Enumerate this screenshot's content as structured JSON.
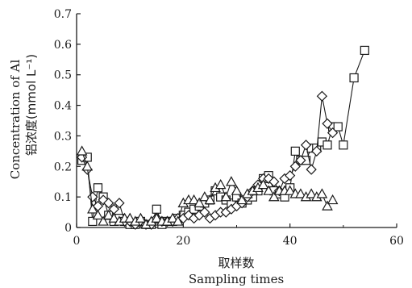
{
  "chart_data": {
    "type": "line",
    "title": "",
    "xlabel_cn": "取样数",
    "xlabel": "Sampling times",
    "ylabel_en": "Concentration of Al",
    "ylabel_cn": "铝浓度(mmol L⁻¹)",
    "xlim": [
      0,
      60
    ],
    "ylim": [
      0,
      0.7
    ],
    "xticks": [
      "0",
      "20",
      "40",
      "60"
    ],
    "yticks": [
      "0",
      "0.1",
      "0.2",
      "0.3",
      "0.4",
      "0.5",
      "0.6",
      "0.7"
    ],
    "grid": false,
    "legend": "none",
    "colors": {
      "ink": "#1a1a1a",
      "background": "#ffffff"
    },
    "series": [
      {
        "marker": "square",
        "x": [
          1,
          2,
          3,
          4,
          5,
          6,
          7,
          8,
          9,
          10,
          11,
          12,
          13,
          14,
          15,
          16,
          17,
          18,
          19,
          20,
          21,
          22,
          23,
          24,
          25,
          26,
          27,
          28,
          29,
          30,
          31,
          32,
          33,
          34,
          35,
          36,
          37,
          38,
          39,
          40,
          41,
          42,
          43,
          44,
          45,
          46,
          47,
          48,
          49,
          50,
          52,
          54
        ],
        "y": [
          0.22,
          0.23,
          0.02,
          0.13,
          0.1,
          0.04,
          0.02,
          0.03,
          0.02,
          0.01,
          0.01,
          0.02,
          0.01,
          0.01,
          0.06,
          0.01,
          0.02,
          0.02,
          0.03,
          0.04,
          0.05,
          0.06,
          0.07,
          0.08,
          0.09,
          0.12,
          0.1,
          0.09,
          0.08,
          0.1,
          0.08,
          0.09,
          0.1,
          0.12,
          0.16,
          0.17,
          0.12,
          0.11,
          0.1,
          0.13,
          0.25,
          0.22,
          0.22,
          0.26,
          0.26,
          0.28,
          0.27,
          0.33,
          0.33,
          0.27,
          0.49,
          0.58
        ]
      },
      {
        "marker": "diamond",
        "x": [
          1,
          2,
          3,
          4,
          5,
          6,
          7,
          8,
          9,
          10,
          11,
          12,
          13,
          14,
          15,
          16,
          17,
          18,
          19,
          20,
          21,
          22,
          23,
          24,
          25,
          26,
          27,
          28,
          29,
          30,
          31,
          32,
          33,
          34,
          35,
          36,
          37,
          38,
          39,
          40,
          41,
          42,
          43,
          44,
          45,
          46,
          47,
          48
        ],
        "y": [
          0.23,
          0.19,
          0.1,
          0.07,
          0.09,
          0.08,
          0.06,
          0.08,
          0.02,
          0.02,
          0.01,
          0.02,
          0.01,
          0.01,
          0.03,
          0.02,
          0.02,
          0.02,
          0.03,
          0.03,
          0.04,
          0.03,
          0.04,
          0.05,
          0.03,
          0.04,
          0.05,
          0.05,
          0.06,
          0.07,
          0.08,
          0.1,
          0.12,
          0.14,
          0.16,
          0.16,
          0.15,
          0.12,
          0.16,
          0.17,
          0.2,
          0.22,
          0.27,
          0.19,
          0.25,
          0.43,
          0.34,
          0.31
        ]
      },
      {
        "marker": "triangle",
        "x": [
          1,
          2,
          3,
          4,
          5,
          6,
          7,
          8,
          9,
          10,
          11,
          12,
          13,
          14,
          15,
          16,
          17,
          18,
          19,
          20,
          21,
          22,
          23,
          24,
          25,
          26,
          27,
          28,
          29,
          30,
          31,
          32,
          33,
          34,
          35,
          36,
          37,
          38,
          39,
          40,
          41,
          42,
          43,
          44,
          45,
          46,
          47,
          48
        ],
        "y": [
          0.25,
          0.2,
          0.06,
          0.04,
          0.02,
          0.04,
          0.03,
          0.02,
          0.03,
          0.03,
          0.02,
          0.03,
          0.01,
          0.02,
          0.03,
          0.02,
          0.02,
          0.03,
          0.02,
          0.08,
          0.09,
          0.09,
          0.08,
          0.1,
          0.09,
          0.13,
          0.14,
          0.1,
          0.15,
          0.12,
          0.09,
          0.11,
          0.12,
          0.13,
          0.14,
          0.12,
          0.1,
          0.12,
          0.12,
          0.12,
          0.11,
          0.11,
          0.1,
          0.11,
          0.1,
          0.11,
          0.07,
          0.09
        ]
      }
    ]
  }
}
